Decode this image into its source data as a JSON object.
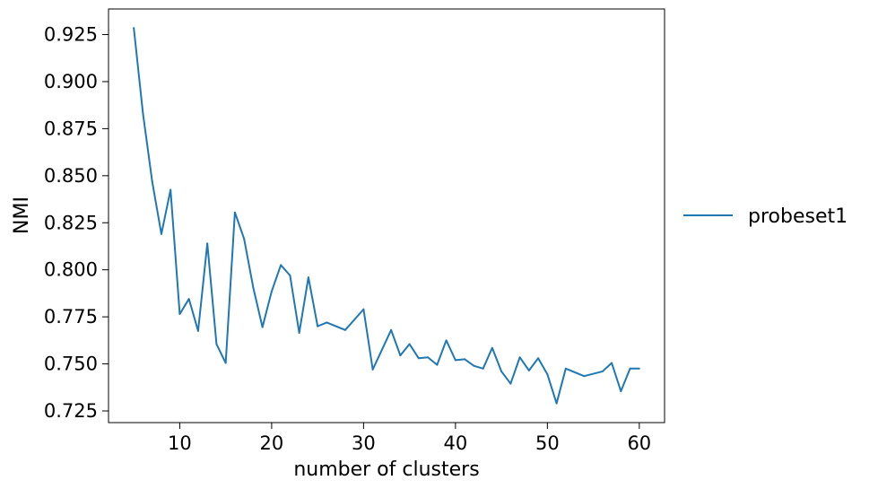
{
  "chart_data": {
    "type": "line",
    "xlabel": "number of clusters",
    "ylabel": "NMI",
    "xlim": [
      2.25,
      62.75
    ],
    "ylim": [
      0.7188,
      0.9386
    ],
    "xticks": [
      10,
      20,
      30,
      40,
      50,
      60
    ],
    "xtick_labels": [
      "10",
      "20",
      "30",
      "40",
      "50",
      "60"
    ],
    "yticks": [
      0.725,
      0.75,
      0.775,
      0.8,
      0.825,
      0.85,
      0.875,
      0.9,
      0.925
    ],
    "ytick_labels": [
      "0.725",
      "0.750",
      "0.775",
      "0.800",
      "0.825",
      "0.850",
      "0.875",
      "0.900",
      "0.925"
    ],
    "grid": false,
    "legend_position": "outside-right",
    "series": [
      {
        "name": "probeset1",
        "color": "#1f77b4",
        "x": [
          5,
          6,
          7,
          8,
          9,
          10,
          11,
          12,
          13,
          14,
          15,
          16,
          17,
          18,
          19,
          20,
          21,
          22,
          23,
          24,
          25,
          26,
          28,
          30,
          31,
          33,
          34,
          35,
          36,
          37,
          38,
          39,
          40,
          41,
          42,
          43,
          44,
          45,
          46,
          47,
          48,
          49,
          50,
          51,
          52,
          54,
          56,
          57,
          58,
          59,
          60
        ],
        "y": [
          0.9285,
          0.883,
          0.847,
          0.819,
          0.8425,
          0.7765,
          0.7845,
          0.7675,
          0.814,
          0.7605,
          0.7505,
          0.8305,
          0.8165,
          0.7905,
          0.7695,
          0.7885,
          0.8025,
          0.797,
          0.7665,
          0.796,
          0.77,
          0.772,
          0.768,
          0.779,
          0.747,
          0.768,
          0.7545,
          0.7605,
          0.753,
          0.7535,
          0.7495,
          0.7625,
          0.752,
          0.7525,
          0.749,
          0.7475,
          0.7585,
          0.746,
          0.7395,
          0.7535,
          0.7465,
          0.753,
          0.7445,
          0.729,
          0.7475,
          0.7435,
          0.746,
          0.7505,
          0.7355,
          0.7475,
          0.7475
        ]
      }
    ]
  }
}
